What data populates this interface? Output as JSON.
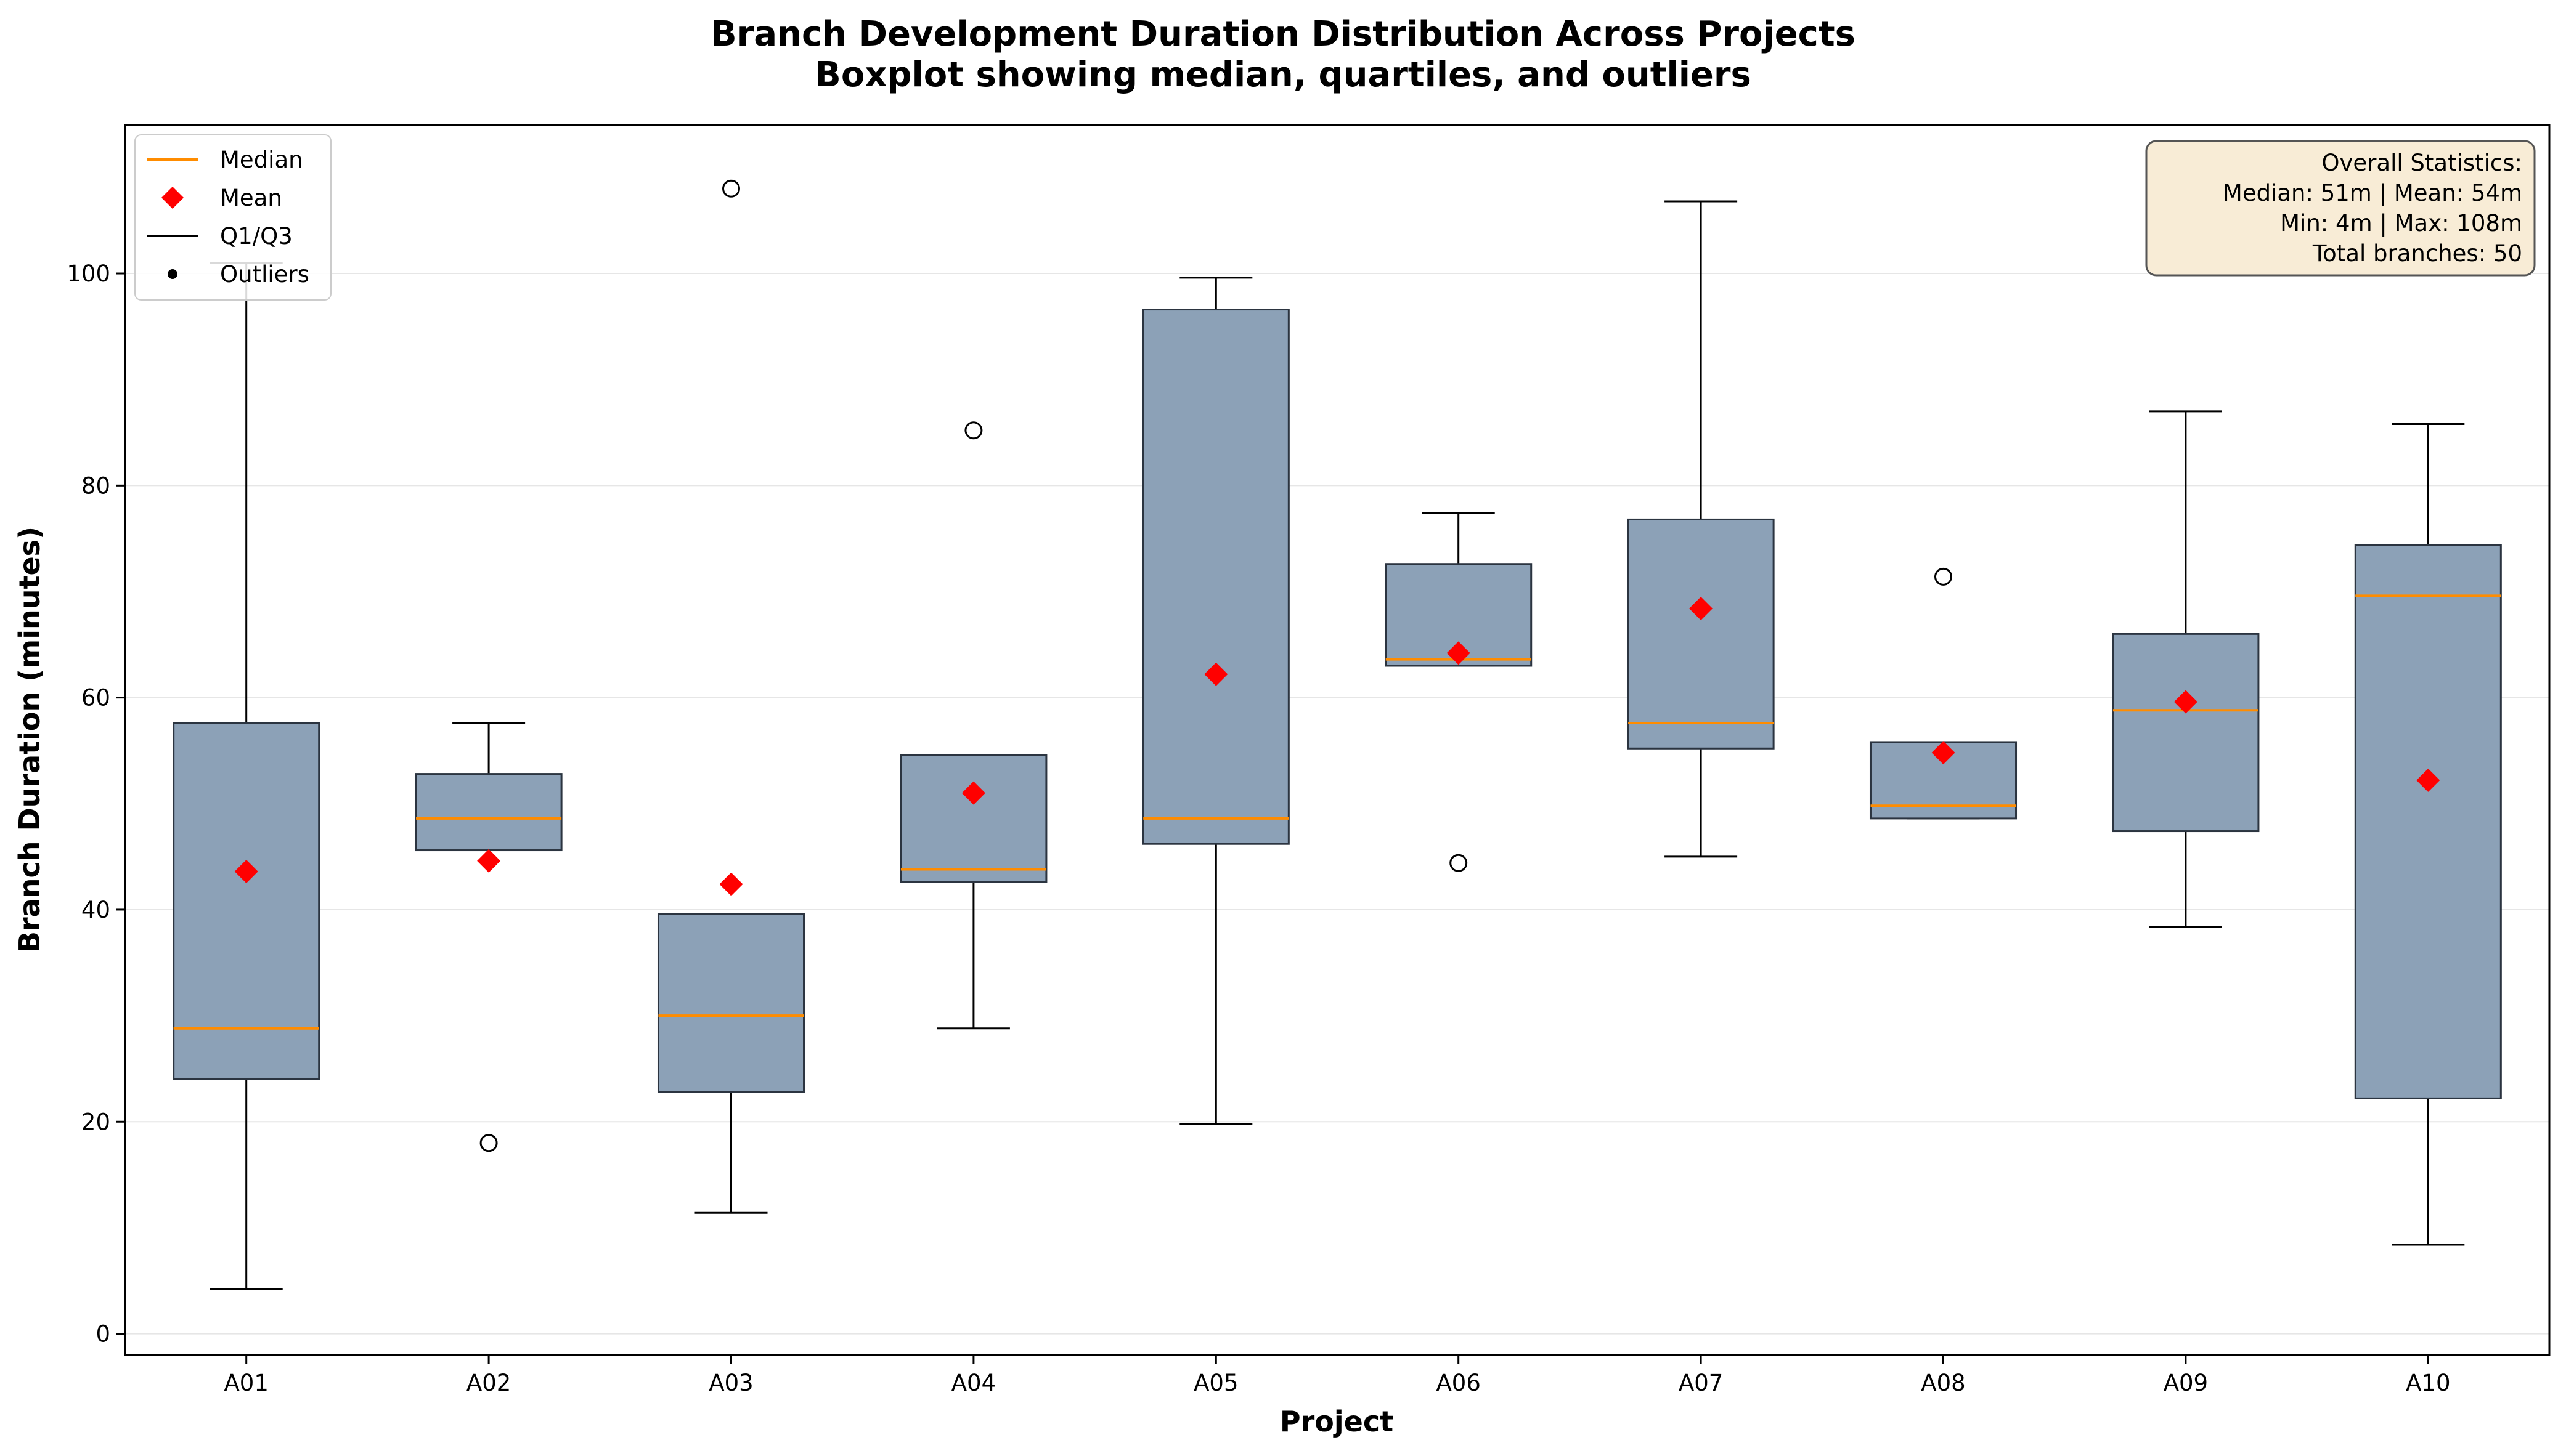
{
  "chart_data": {
    "type": "boxplot",
    "title": "Branch Development Duration Distribution Across Projects",
    "subtitle": "Boxplot showing median, quartiles, and outliers",
    "xlabel": "Project",
    "ylabel": "Branch Duration (minutes)",
    "ylim": [
      -2,
      114
    ],
    "yticks": [
      0,
      20,
      40,
      60,
      80,
      100
    ],
    "grid": "y",
    "categories": [
      "A01",
      "A02",
      "A03",
      "A04",
      "A05",
      "A06",
      "A07",
      "A08",
      "A09",
      "A10"
    ],
    "boxes": [
      {
        "label": "A01",
        "whisker_low": 4.2,
        "q1": 24.0,
        "median": 28.8,
        "q3": 57.6,
        "whisker_high": 101.0,
        "mean": 43.6,
        "outliers": []
      },
      {
        "label": "A02",
        "whisker_low": 45.6,
        "q1": 45.6,
        "median": 48.6,
        "q3": 52.8,
        "whisker_high": 57.6,
        "mean": 44.6,
        "outliers": [
          18.0
        ]
      },
      {
        "label": "A03",
        "whisker_low": 11.4,
        "q1": 22.8,
        "median": 30.0,
        "q3": 39.6,
        "whisker_high": 39.6,
        "mean": 42.4,
        "outliers": [
          108.0
        ]
      },
      {
        "label": "A04",
        "whisker_low": 28.8,
        "q1": 42.6,
        "median": 43.8,
        "q3": 54.6,
        "whisker_high": 54.6,
        "mean": 51.0,
        "outliers": [
          85.2
        ]
      },
      {
        "label": "A05",
        "whisker_low": 19.8,
        "q1": 46.2,
        "median": 48.6,
        "q3": 96.6,
        "whisker_high": 99.6,
        "mean": 62.2,
        "outliers": []
      },
      {
        "label": "A06",
        "whisker_low": 63.0,
        "q1": 63.0,
        "median": 63.6,
        "q3": 72.6,
        "whisker_high": 77.4,
        "mean": 64.2,
        "outliers": [
          44.4
        ]
      },
      {
        "label": "A07",
        "whisker_low": 45.0,
        "q1": 55.2,
        "median": 57.6,
        "q3": 76.8,
        "whisker_high": 106.8,
        "mean": 68.4,
        "outliers": []
      },
      {
        "label": "A08",
        "whisker_low": 48.6,
        "q1": 48.6,
        "median": 49.8,
        "q3": 55.8,
        "whisker_high": 55.8,
        "mean": 54.8,
        "outliers": [
          71.4
        ]
      },
      {
        "label": "A09",
        "whisker_low": 38.4,
        "q1": 47.4,
        "median": 58.8,
        "q3": 66.0,
        "whisker_high": 87.0,
        "mean": 59.6,
        "outliers": []
      },
      {
        "label": "A10",
        "whisker_low": 8.4,
        "q1": 22.2,
        "median": 69.6,
        "q3": 74.4,
        "whisker_high": 85.8,
        "mean": 52.2,
        "outliers": []
      }
    ],
    "legend": {
      "position": "upper-left",
      "items": [
        {
          "key": "median",
          "label": "Median"
        },
        {
          "key": "mean",
          "label": "Mean"
        },
        {
          "key": "q1q3",
          "label": "Q1/Q3"
        },
        {
          "key": "outliers",
          "label": "Outliers"
        }
      ]
    },
    "stats_box": {
      "position": "upper-right",
      "lines": [
        "Overall Statistics:",
        "Median: 51m | Mean: 54m",
        "Min: 4m | Max: 108m",
        "Total branches: 50"
      ]
    },
    "colors": {
      "box_fill": "#8ca1b7",
      "box_edge": "#2b3440",
      "median": "#ff8c00",
      "mean": "#ff0000",
      "whisker": "#000000",
      "grid": "#e6e6e6",
      "stats_bg": "#f8ecd6",
      "stats_edge": "#555555"
    }
  }
}
